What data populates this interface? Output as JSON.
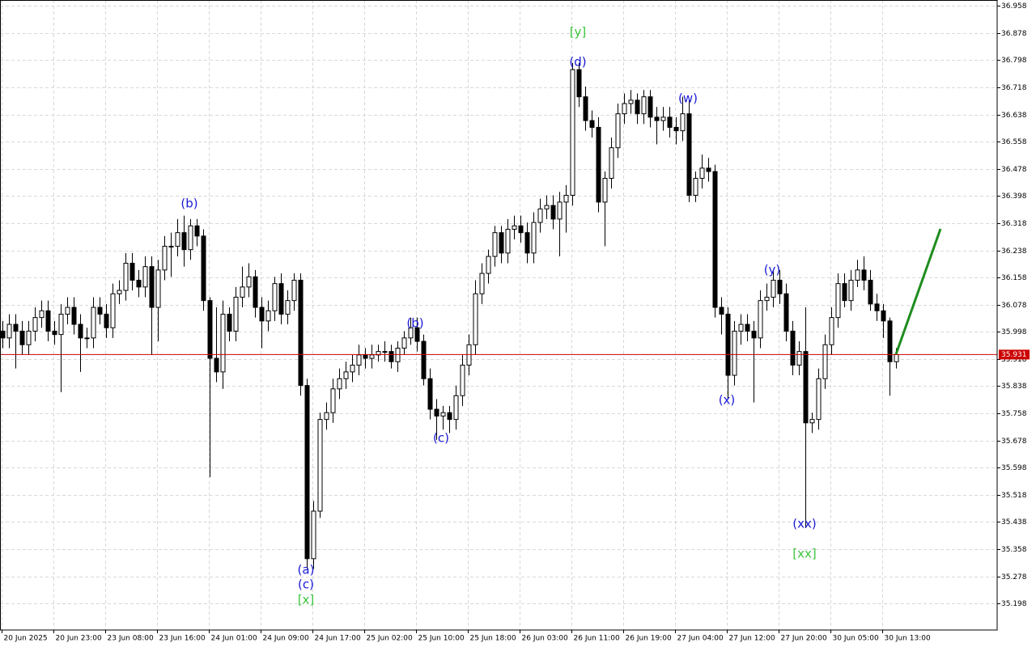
{
  "chart_data": {
    "type": "candlestick",
    "categories": [
      "20 Jun 2025",
      null,
      null,
      null,
      null,
      null,
      null,
      null,
      "20 Jun 23:00",
      null,
      null,
      null,
      null,
      null,
      null,
      null,
      "23 Jun 08:00",
      null,
      null,
      null,
      null,
      null,
      null,
      null,
      "23 Jun 16:00",
      null,
      null,
      null,
      null,
      null,
      null,
      null,
      "24 Jun 01:00",
      null,
      null,
      null,
      null,
      null,
      null,
      null,
      "24 Jun 09:00",
      null,
      null,
      null,
      null,
      null,
      null,
      null,
      "24 Jun 17:00",
      null,
      null,
      null,
      null,
      null,
      null,
      null,
      "25 Jun 02:00",
      null,
      null,
      null,
      null,
      null,
      null,
      null,
      "25 Jun 10:00",
      null,
      null,
      null,
      null,
      null,
      null,
      null,
      "25 Jun 18:00",
      null,
      null,
      null,
      null,
      null,
      null,
      null,
      "26 Jun 03:00",
      null,
      null,
      null,
      null,
      null,
      null,
      null,
      "26 Jun 11:00",
      null,
      null,
      null,
      null,
      null,
      null,
      null,
      "26 Jun 19:00",
      null,
      null,
      null,
      null,
      null,
      null,
      null,
      "27 Jun 04:00",
      null,
      null,
      null,
      null,
      null,
      null,
      null,
      "27 Jun 12:00",
      null,
      null,
      null,
      null,
      null,
      null,
      null,
      "27 Jun 20:00",
      null,
      null,
      null,
      null,
      null,
      null,
      null,
      "30 Jun 05:00",
      null,
      null,
      null,
      null,
      null,
      null,
      null,
      "30 Jun 13:00",
      null,
      null
    ],
    "open": [
      36.0,
      35.98,
      36.02,
      36.0,
      35.96,
      36.0,
      36.04,
      36.06,
      36.0,
      35.99,
      36.05,
      36.07,
      36.02,
      35.98,
      35.98,
      36.07,
      36.05,
      36.01,
      36.11,
      36.12,
      36.2,
      36.15,
      36.13,
      36.19,
      36.07,
      36.18,
      36.25,
      36.25,
      36.29,
      36.24,
      36.31,
      36.28,
      36.09,
      35.92,
      35.88,
      36.05,
      36.0,
      36.1,
      36.13,
      36.16,
      36.07,
      36.03,
      36.06,
      36.14,
      36.05,
      36.09,
      36.15,
      35.84,
      35.33,
      35.47,
      35.74,
      35.76,
      35.83,
      35.86,
      35.88,
      35.9,
      35.93,
      35.92,
      35.93,
      35.94,
      35.94,
      35.91,
      35.95,
      35.98,
      36.01,
      35.97,
      35.86,
      35.77,
      35.75,
      35.76,
      35.74,
      35.81,
      35.9,
      35.96,
      36.11,
      36.17,
      36.22,
      36.29,
      36.23,
      36.3,
      36.31,
      36.29,
      36.23,
      36.32,
      36.36,
      36.37,
      36.33,
      36.38,
      36.4,
      36.77,
      36.69,
      36.62,
      36.6,
      36.38,
      36.45,
      36.54,
      36.64,
      36.67,
      36.68,
      36.64,
      36.69,
      36.63,
      36.62,
      36.63,
      36.6,
      36.59,
      36.64,
      36.4,
      36.45,
      36.48,
      36.47,
      36.07,
      36.05,
      35.87,
      36.0,
      36.02,
      36.0,
      35.98,
      36.09,
      36.1,
      36.15,
      36.11,
      36.0,
      35.9,
      35.94,
      35.73,
      35.74,
      35.86,
      35.96,
      36.04,
      36.14,
      36.09,
      36.15,
      36.18,
      36.15,
      36.08,
      36.06,
      36.03,
      35.91
    ],
    "high": [
      36.03,
      36.05,
      36.05,
      36.03,
      36.03,
      36.07,
      36.09,
      36.09,
      36.03,
      36.08,
      36.1,
      36.1,
      36.05,
      36.01,
      36.1,
      36.1,
      36.08,
      36.14,
      36.15,
      36.23,
      36.23,
      36.18,
      36.22,
      36.22,
      36.21,
      36.28,
      36.29,
      36.33,
      36.34,
      36.33,
      36.33,
      36.3,
      36.1,
      36.07,
      36.09,
      36.07,
      36.13,
      36.19,
      36.2,
      36.18,
      36.1,
      36.09,
      36.16,
      36.17,
      36.12,
      36.17,
      36.17,
      35.86,
      35.5,
      35.76,
      35.79,
      35.86,
      35.89,
      35.91,
      35.93,
      35.96,
      35.95,
      35.96,
      35.96,
      35.97,
      35.96,
      35.97,
      36.0,
      36.04,
      36.04,
      35.99,
      35.89,
      35.8,
      35.78,
      35.78,
      35.84,
      35.93,
      35.99,
      36.15,
      36.2,
      36.24,
      36.31,
      36.31,
      36.33,
      36.34,
      36.34,
      36.32,
      36.35,
      36.39,
      36.4,
      36.4,
      36.41,
      36.43,
      36.79,
      36.79,
      36.72,
      36.65,
      36.63,
      36.47,
      36.57,
      36.67,
      36.7,
      36.71,
      36.7,
      36.71,
      36.71,
      36.66,
      36.66,
      36.66,
      36.63,
      36.69,
      36.68,
      36.47,
      36.52,
      36.51,
      36.49,
      36.1,
      36.07,
      36.03,
      36.05,
      36.05,
      36.03,
      36.12,
      36.14,
      36.18,
      36.18,
      36.14,
      36.03,
      35.97,
      36.07,
      35.76,
      35.89,
      35.99,
      36.07,
      36.17,
      36.17,
      36.18,
      36.21,
      36.22,
      36.18,
      36.11,
      36.08,
      36.04,
      35.95
    ],
    "low": [
      35.95,
      35.95,
      35.89,
      35.93,
      35.93,
      35.97,
      36.01,
      35.97,
      35.96,
      35.82,
      36.02,
      35.99,
      35.88,
      35.95,
      35.95,
      36.02,
      35.98,
      35.98,
      36.08,
      36.09,
      36.12,
      36.1,
      36.1,
      35.93,
      35.97,
      36.15,
      36.16,
      36.22,
      36.19,
      36.21,
      36.25,
      36.06,
      35.57,
      35.85,
      35.83,
      35.97,
      35.97,
      36.07,
      36.1,
      36.04,
      35.95,
      36.0,
      36.03,
      36.02,
      36.02,
      36.06,
      35.81,
      35.3,
      35.3,
      35.45,
      35.71,
      35.73,
      35.8,
      35.83,
      35.85,
      35.87,
      35.89,
      35.89,
      35.91,
      35.91,
      35.89,
      35.88,
      35.93,
      35.96,
      35.94,
      35.84,
      35.74,
      35.68,
      35.71,
      35.7,
      35.71,
      35.78,
      35.87,
      35.93,
      36.08,
      36.14,
      36.19,
      36.2,
      36.2,
      36.27,
      36.26,
      36.2,
      36.2,
      36.29,
      36.33,
      36.3,
      36.22,
      36.29,
      36.37,
      36.66,
      36.59,
      36.57,
      36.35,
      36.25,
      36.42,
      36.51,
      36.61,
      36.64,
      36.61,
      36.61,
      36.6,
      36.55,
      36.59,
      36.57,
      36.55,
      36.56,
      36.38,
      36.38,
      36.42,
      36.44,
      36.04,
      35.99,
      35.8,
      35.84,
      35.96,
      35.97,
      35.79,
      35.95,
      36.06,
      36.07,
      36.08,
      35.97,
      35.87,
      35.87,
      35.42,
      35.7,
      35.71,
      35.83,
      35.93,
      36.01,
      36.07,
      36.06,
      36.13,
      36.12,
      36.06,
      36.03,
      35.98,
      35.81,
      35.89
    ],
    "close": [
      35.98,
      36.02,
      36.0,
      35.96,
      36.0,
      36.04,
      36.06,
      36.0,
      35.99,
      36.05,
      36.07,
      36.02,
      35.98,
      35.98,
      36.07,
      36.05,
      36.01,
      36.11,
      36.12,
      36.2,
      36.15,
      36.13,
      36.19,
      36.07,
      36.18,
      36.25,
      36.25,
      36.29,
      36.24,
      36.31,
      36.28,
      36.09,
      35.92,
      35.88,
      36.05,
      36.0,
      36.1,
      36.13,
      36.16,
      36.07,
      36.03,
      36.06,
      36.14,
      36.05,
      36.09,
      36.15,
      35.84,
      35.33,
      35.47,
      35.74,
      35.76,
      35.83,
      35.86,
      35.88,
      35.9,
      35.93,
      35.92,
      35.93,
      35.94,
      35.94,
      35.91,
      35.95,
      35.98,
      36.01,
      35.97,
      35.86,
      35.77,
      35.75,
      35.76,
      35.74,
      35.81,
      35.9,
      35.96,
      36.11,
      36.17,
      36.22,
      36.29,
      36.23,
      36.3,
      36.31,
      36.29,
      36.23,
      36.32,
      36.36,
      36.37,
      36.33,
      36.38,
      36.4,
      36.77,
      36.69,
      36.62,
      36.6,
      36.38,
      36.45,
      36.54,
      36.64,
      36.67,
      36.68,
      36.64,
      36.69,
      36.63,
      36.62,
      36.63,
      36.6,
      36.59,
      36.64,
      36.4,
      36.45,
      36.48,
      36.47,
      36.07,
      36.05,
      35.87,
      36.0,
      36.02,
      36.0,
      35.98,
      36.09,
      36.1,
      36.15,
      36.11,
      36.0,
      35.9,
      35.94,
      35.73,
      35.74,
      35.86,
      35.96,
      36.04,
      36.14,
      36.09,
      36.15,
      36.18,
      36.15,
      36.08,
      36.06,
      36.03,
      35.91,
      35.931
    ],
    "ylim": [
      35.12,
      36.975
    ],
    "yticks": [
      36.958,
      36.878,
      36.798,
      36.718,
      36.638,
      36.558,
      36.478,
      36.398,
      36.318,
      36.238,
      36.158,
      36.078,
      35.998,
      35.918,
      35.838,
      35.758,
      35.678,
      35.598,
      35.518,
      35.438,
      35.358,
      35.278,
      35.198
    ],
    "grid": true,
    "up_color": "#ffffff",
    "down_color": "#000000",
    "current_price": 35.931,
    "current_price_color": "#cc0000",
    "annotations": [
      {
        "text": "(b)",
        "color": "#1a1ad6"
      },
      {
        "text": "(a)",
        "color": "#1a1ad6"
      },
      {
        "text": "(c)",
        "color": "#1a1ad6"
      },
      {
        "text": "[x]",
        "color": "#3cc43c"
      },
      {
        "text": "(b)",
        "color": "#1a1ad6"
      },
      {
        "text": "(c)",
        "color": "#1a1ad6"
      },
      {
        "text": "[y]",
        "color": "#3cc43c"
      },
      {
        "text": "(d)",
        "color": "#1a1ad6"
      },
      {
        "text": "(w)",
        "color": "#1a1ad6"
      },
      {
        "text": "(x)",
        "color": "#1a1ad6"
      },
      {
        "text": "(y)",
        "color": "#1a1ad6"
      },
      {
        "text": "(xx)",
        "color": "#1a1ad6"
      },
      {
        "text": "[xx]",
        "color": "#3cc43c"
      }
    ]
  }
}
